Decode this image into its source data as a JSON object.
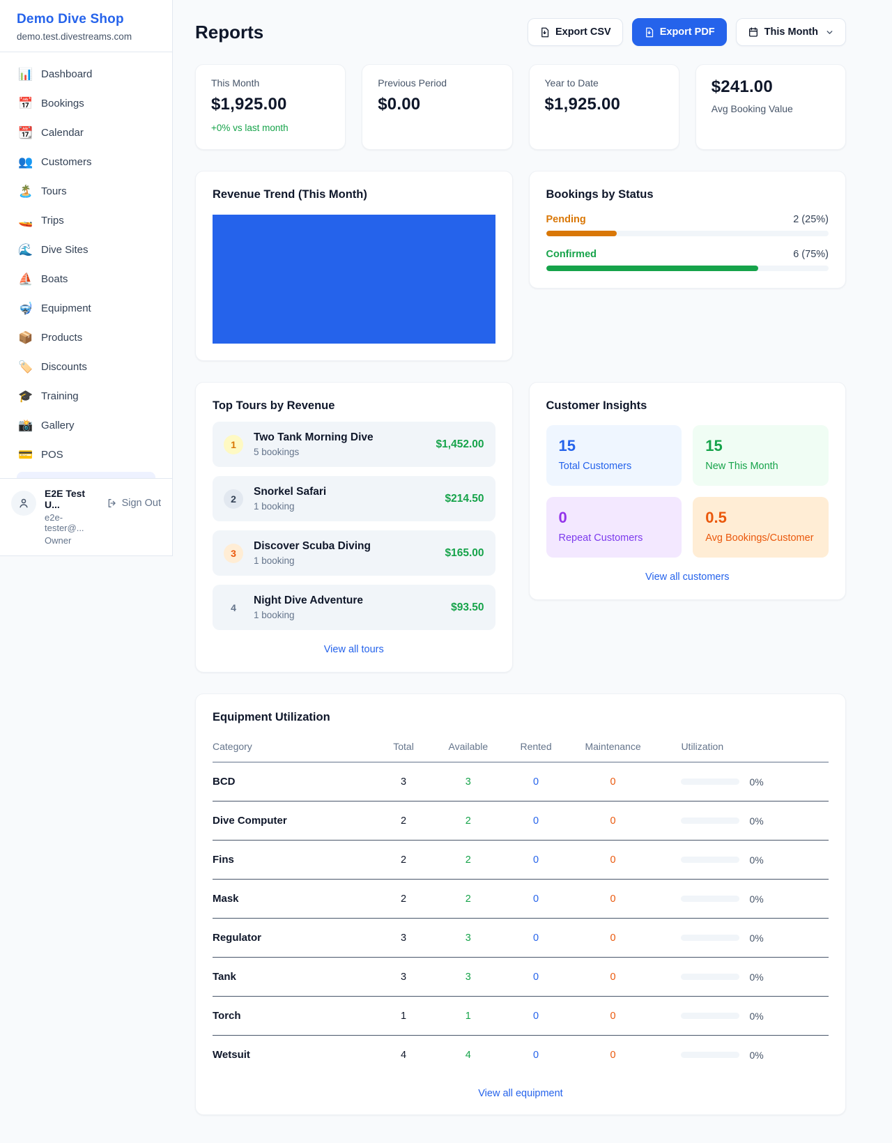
{
  "sidebar": {
    "brand": {
      "title": "Demo Dive Shop",
      "domain": "demo.test.divestreams.com"
    },
    "items": [
      {
        "label": "Dashboard",
        "icon": "📊"
      },
      {
        "label": "Bookings",
        "icon": "📅"
      },
      {
        "label": "Calendar",
        "icon": "📆"
      },
      {
        "label": "Customers",
        "icon": "👥"
      },
      {
        "label": "Tours",
        "icon": "🏝️"
      },
      {
        "label": "Trips",
        "icon": "🚤"
      },
      {
        "label": "Dive Sites",
        "icon": "🌊"
      },
      {
        "label": "Boats",
        "icon": "⛵"
      },
      {
        "label": "Equipment",
        "icon": "🤿"
      },
      {
        "label": "Products",
        "icon": "📦"
      },
      {
        "label": "Discounts",
        "icon": "🏷️"
      },
      {
        "label": "Training",
        "icon": "🎓"
      },
      {
        "label": "Gallery",
        "icon": "📸"
      },
      {
        "label": "POS",
        "icon": "💳"
      }
    ],
    "user": {
      "name": "E2E Test U...",
      "email": "e2e-tester@...",
      "role": "Owner",
      "sign_out_label": "Sign Out"
    }
  },
  "header": {
    "title": "Reports",
    "export_csv_label": "Export CSV",
    "export_pdf_label": "Export PDF",
    "period_label": "This Month"
  },
  "stats": {
    "this_month": {
      "label": "This Month",
      "value": "$1,925.00",
      "delta": "+0% vs last month"
    },
    "previous_period": {
      "label": "Previous Period",
      "value": "$0.00"
    },
    "year_to_date": {
      "label": "Year to Date",
      "value": "$1,925.00"
    },
    "avg_booking": {
      "value": "$241.00",
      "label": "Avg Booking Value"
    }
  },
  "revenue_trend": {
    "title": "Revenue Trend (This Month)"
  },
  "bookings_by_status": {
    "title": "Bookings by Status",
    "rows": [
      {
        "label": "Pending",
        "count_text": "2 (25%)",
        "percent": 25,
        "color": "#d97706"
      },
      {
        "label": "Confirmed",
        "count_text": "6 (75%)",
        "percent": 75,
        "color": "#16a34a"
      }
    ]
  },
  "top_tours": {
    "title": "Top Tours by Revenue",
    "rows": [
      {
        "rank": "1",
        "name": "Two Tank Morning Dive",
        "bookings": "5 bookings",
        "revenue": "$1,452.00"
      },
      {
        "rank": "2",
        "name": "Snorkel Safari",
        "bookings": "1 booking",
        "revenue": "$214.50"
      },
      {
        "rank": "3",
        "name": "Discover Scuba Diving",
        "bookings": "1 booking",
        "revenue": "$165.00"
      },
      {
        "rank": "4",
        "name": "Night Dive Adventure",
        "bookings": "1 booking",
        "revenue": "$93.50"
      }
    ],
    "view_all_label": "View all tours"
  },
  "customer_insights": {
    "title": "Customer Insights",
    "tiles": [
      {
        "value": "15",
        "label": "Total Customers"
      },
      {
        "value": "15",
        "label": "New This Month"
      },
      {
        "value": "0",
        "label": "Repeat Customers"
      },
      {
        "value": "0.5",
        "label": "Avg Bookings/Customer"
      }
    ],
    "view_all_label": "View all customers"
  },
  "equipment": {
    "title": "Equipment Utilization",
    "columns": [
      "Category",
      "Total",
      "Available",
      "Rented",
      "Maintenance",
      "Utilization"
    ],
    "rows": [
      {
        "category": "BCD",
        "total": "3",
        "available": "3",
        "rented": "0",
        "maintenance": "0",
        "utilization_percent": 0,
        "utilization_text": "0%"
      },
      {
        "category": "Dive Computer",
        "total": "2",
        "available": "2",
        "rented": "0",
        "maintenance": "0",
        "utilization_percent": 0,
        "utilization_text": "0%"
      },
      {
        "category": "Fins",
        "total": "2",
        "available": "2",
        "rented": "0",
        "maintenance": "0",
        "utilization_percent": 0,
        "utilization_text": "0%"
      },
      {
        "category": "Mask",
        "total": "2",
        "available": "2",
        "rented": "0",
        "maintenance": "0",
        "utilization_percent": 0,
        "utilization_text": "0%"
      },
      {
        "category": "Regulator",
        "total": "3",
        "available": "3",
        "rented": "0",
        "maintenance": "0",
        "utilization_percent": 0,
        "utilization_text": "0%"
      },
      {
        "category": "Tank",
        "total": "3",
        "available": "3",
        "rented": "0",
        "maintenance": "0",
        "utilization_percent": 0,
        "utilization_text": "0%"
      },
      {
        "category": "Torch",
        "total": "1",
        "available": "1",
        "rented": "0",
        "maintenance": "0",
        "utilization_percent": 0,
        "utilization_text": "0%"
      },
      {
        "category": "Wetsuit",
        "total": "4",
        "available": "4",
        "rented": "0",
        "maintenance": "0",
        "utilization_percent": 0,
        "utilization_text": "0%"
      }
    ],
    "view_all_label": "View all equipment"
  },
  "chart_data": [
    {
      "type": "bar",
      "title": "Revenue Trend (This Month)",
      "categories": [
        "This Month"
      ],
      "values": [
        1925
      ],
      "xlabel": "",
      "ylabel": "",
      "legend": false,
      "note": "single bar filling entire plot area, solid blue #2563eb, no axes or labels visible"
    },
    {
      "type": "bar",
      "title": "Bookings by Status",
      "categories": [
        "Pending",
        "Confirmed"
      ],
      "values": [
        2,
        6
      ],
      "percentages": [
        25,
        75
      ],
      "colors": [
        "#d97706",
        "#16a34a"
      ],
      "layout": "horizontal progress bars with right-aligned count labels"
    }
  ],
  "colors": {
    "brand_blue": "#2563eb",
    "success_green": "#16a34a",
    "pending_orange": "#d97706",
    "maintenance_orange": "#ea580c",
    "link_blue": "#2563eb",
    "page_background": "#f8fafc",
    "muted_text": "#64748b"
  }
}
